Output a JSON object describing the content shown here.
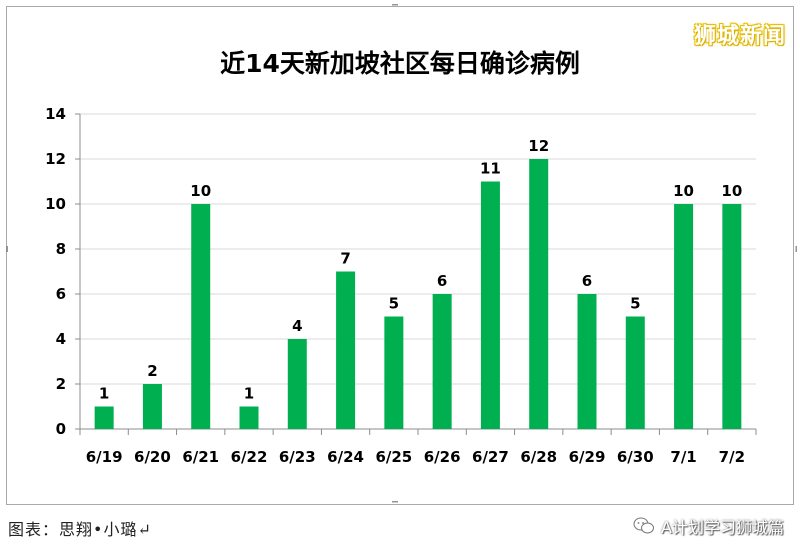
{
  "watermark_top": "狮城新闻",
  "caption": "图表：思翔•小璐↵",
  "source_label": "A计划学习狮城篇",
  "source_icon": "wechat-icon",
  "colors": {
    "bar": "#00b050",
    "gridline": "#d9d9d9",
    "axis": "#8c8c8c",
    "text": "#000000"
  },
  "chart_data": {
    "type": "bar",
    "title": "近14天新加坡社区每日确诊病例",
    "categories": [
      "6/19",
      "6/20",
      "6/21",
      "6/22",
      "6/23",
      "6/24",
      "6/25",
      "6/26",
      "6/27",
      "6/28",
      "6/29",
      "6/30",
      "7/1",
      "7/2"
    ],
    "values": [
      1,
      2,
      10,
      1,
      4,
      7,
      5,
      6,
      11,
      12,
      6,
      5,
      10,
      10
    ],
    "ylim": [
      0,
      14
    ],
    "yticks": [
      0,
      2,
      4,
      6,
      8,
      10,
      12,
      14
    ],
    "xlabel": "",
    "ylabel": "",
    "grid": true,
    "data_labels": true,
    "legend": "none"
  }
}
